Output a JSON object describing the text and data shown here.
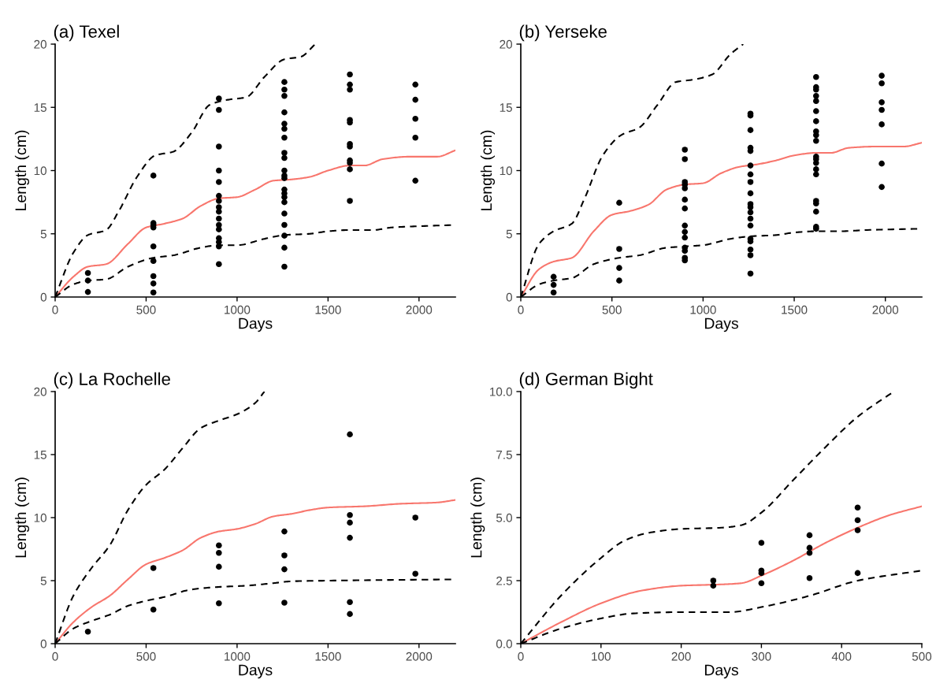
{
  "chart_data": [
    {
      "type": "scatter",
      "title": "(a) Texel",
      "xlabel": "Days",
      "ylabel": "Length (cm)",
      "xlim": [
        0,
        2200
      ],
      "xticks": [
        0,
        500,
        1000,
        1500,
        2000
      ],
      "ylim": [
        0,
        20
      ],
      "yticks": [
        0,
        5,
        10,
        15,
        20
      ],
      "grid": false,
      "legend": false,
      "series": [
        {
          "marker": "circle",
          "color": "#000000",
          "x": [
            180,
            180,
            180,
            540,
            540,
            540,
            540,
            540,
            540,
            540,
            540,
            540,
            900,
            900,
            900,
            900,
            900,
            900,
            900,
            900,
            900,
            900,
            900,
            900,
            900,
            900,
            900,
            900,
            1260,
            1260,
            1260,
            1260,
            1260,
            1260,
            1260,
            1260,
            1260,
            1260,
            1260,
            1260,
            1260,
            1260,
            1260,
            1260,
            1260,
            1260,
            1260,
            1260,
            1260,
            1620,
            1620,
            1620,
            1620,
            1620,
            1620,
            1620,
            1620,
            1620,
            1620,
            1620,
            1980,
            1980,
            1980,
            1980,
            1980
          ],
          "values": [
            1.9,
            1.3,
            0.4,
            9.6,
            5.85,
            5.7,
            5.5,
            4.0,
            2.85,
            1.65,
            1.07,
            0.36,
            15.7,
            14.8,
            11.9,
            10.0,
            9.1,
            8.0,
            7.6,
            7.1,
            6.75,
            6.2,
            5.7,
            5.35,
            4.65,
            4.35,
            4.0,
            2.6,
            17.0,
            16.4,
            15.9,
            14.6,
            13.7,
            13.3,
            12.6,
            11.4,
            11.0,
            10.0,
            9.6,
            9.4,
            8.5,
            8.2,
            7.9,
            7.5,
            6.6,
            5.7,
            4.85,
            3.9,
            2.4,
            17.6,
            16.8,
            16.4,
            14.0,
            13.8,
            12.1,
            11.9,
            10.8,
            10.6,
            10.1,
            7.6,
            16.8,
            15.6,
            14.1,
            12.6,
            9.2
          ]
        },
        {
          "type": "line",
          "color": "#f8766d",
          "line_style": "solid",
          "x": [
            0,
            100,
            180,
            280,
            400,
            500,
            600,
            700,
            800,
            900,
            1000,
            1100,
            1200,
            1300,
            1400,
            1500,
            1620,
            1700,
            1800,
            1950,
            2100,
            2200
          ],
          "values": [
            0,
            1.6,
            2.4,
            2.6,
            4.2,
            5.5,
            5.8,
            6.2,
            7.2,
            7.8,
            7.9,
            8.5,
            9.2,
            9.3,
            9.5,
            10.0,
            10.4,
            10.4,
            10.9,
            11.1,
            11.1,
            11.6
          ]
        },
        {
          "type": "line",
          "color": "#000000",
          "line_style": "dashed",
          "x": [
            0,
            100,
            180,
            280,
            350,
            450,
            550,
            650,
            750,
            850,
            950,
            1050,
            1150,
            1260,
            1350,
            1430
          ],
          "values": [
            0,
            3.5,
            4.9,
            5.3,
            6.8,
            9.5,
            11.2,
            11.5,
            13.0,
            15.2,
            15.6,
            15.8,
            17.4,
            18.8,
            19.0,
            20.0
          ]
        },
        {
          "type": "line",
          "color": "#000000",
          "line_style": "dashed",
          "x": [
            0,
            100,
            180,
            280,
            400,
            540,
            650,
            800,
            900,
            1000,
            1150,
            1260,
            1400,
            1500,
            1620,
            1750,
            1850,
            2000,
            2200
          ],
          "values": [
            0,
            1.0,
            1.3,
            1.4,
            2.4,
            3.1,
            3.3,
            3.9,
            4.1,
            4.1,
            4.6,
            4.9,
            5.0,
            5.2,
            5.3,
            5.3,
            5.5,
            5.6,
            5.7
          ]
        }
      ]
    },
    {
      "type": "scatter",
      "title": "(b) Yerseke",
      "xlabel": "Days",
      "ylabel": "Length (cm)",
      "xlim": [
        0,
        2200
      ],
      "xticks": [
        0,
        500,
        1000,
        1500,
        2000
      ],
      "ylim": [
        0,
        20
      ],
      "yticks": [
        0,
        5,
        10,
        15,
        20
      ],
      "grid": false,
      "legend": false,
      "series": [
        {
          "marker": "circle",
          "color": "#000000",
          "x": [
            180,
            180,
            180,
            540,
            540,
            540,
            540,
            900,
            900,
            900,
            900,
            900,
            900,
            900,
            900,
            900,
            900,
            900,
            900,
            900,
            900,
            1260,
            1260,
            1260,
            1260,
            1260,
            1260,
            1260,
            1260,
            1260,
            1260,
            1260,
            1260,
            1260,
            1260,
            1260,
            1260,
            1260,
            1260,
            1260,
            1620,
            1620,
            1620,
            1620,
            1620,
            1620,
            1620,
            1620,
            1620,
            1620,
            1620,
            1620,
            1620,
            1620,
            1620,
            1620,
            1620,
            1620,
            1620,
            1620,
            1980,
            1980,
            1980,
            1980,
            1980,
            1980,
            1980
          ],
          "values": [
            1.6,
            0.96,
            0.36,
            7.45,
            3.8,
            2.3,
            1.3,
            11.65,
            10.9,
            9.1,
            8.9,
            8.6,
            7.7,
            7.0,
            5.65,
            5.15,
            4.7,
            3.9,
            3.65,
            3.1,
            2.9,
            14.5,
            14.35,
            13.2,
            11.8,
            11.55,
            10.4,
            9.7,
            9.1,
            8.2,
            7.35,
            7.1,
            6.7,
            6.2,
            5.65,
            4.6,
            4.4,
            3.75,
            3.3,
            1.85,
            17.4,
            16.6,
            16.4,
            15.9,
            15.5,
            14.7,
            13.9,
            13.1,
            12.8,
            12.35,
            11.1,
            10.9,
            10.6,
            10.1,
            9.7,
            7.6,
            7.4,
            6.75,
            5.55,
            5.4,
            17.5,
            16.9,
            15.4,
            14.8,
            13.65,
            10.55,
            8.7
          ]
        },
        {
          "type": "line",
          "color": "#f8766d",
          "line_style": "solid",
          "x": [
            0,
            100,
            180,
            280,
            400,
            500,
            600,
            700,
            800,
            900,
            1000,
            1100,
            1200,
            1300,
            1400,
            1500,
            1620,
            1700,
            1800,
            1950,
            2100,
            2200
          ],
          "values": [
            0,
            2.2,
            2.8,
            3.1,
            5.2,
            6.5,
            6.8,
            7.3,
            8.5,
            8.9,
            9.0,
            9.8,
            10.3,
            10.5,
            10.8,
            11.2,
            11.4,
            11.4,
            11.8,
            11.9,
            11.9,
            12.2
          ]
        },
        {
          "type": "line",
          "color": "#000000",
          "line_style": "dashed",
          "x": [
            0,
            100,
            180,
            280,
            350,
            450,
            550,
            650,
            750,
            850,
            950,
            1050,
            1150,
            1220
          ],
          "values": [
            0,
            4.2,
            5.2,
            5.8,
            7.8,
            11.2,
            12.8,
            13.4,
            15.2,
            17.0,
            17.2,
            17.6,
            19.2,
            20.0
          ]
        },
        {
          "type": "line",
          "color": "#000000",
          "line_style": "dashed",
          "x": [
            0,
            100,
            180,
            280,
            400,
            540,
            650,
            800,
            900,
            1000,
            1150,
            1260,
            1400,
            1500,
            1620,
            1750,
            1900,
            2200
          ],
          "values": [
            0,
            1.0,
            1.3,
            1.5,
            2.6,
            3.1,
            3.3,
            3.9,
            4.0,
            4.1,
            4.6,
            4.8,
            4.9,
            5.1,
            5.2,
            5.2,
            5.3,
            5.4
          ]
        }
      ]
    },
    {
      "type": "scatter",
      "title": "(c) La Rochelle",
      "xlabel": "Days",
      "ylabel": "Length (cm)",
      "xlim": [
        0,
        2200
      ],
      "xticks": [
        0,
        500,
        1000,
        1500,
        2000
      ],
      "ylim": [
        0,
        20
      ],
      "yticks": [
        0,
        5,
        10,
        15,
        20
      ],
      "grid": false,
      "legend": false,
      "series": [
        {
          "marker": "circle",
          "color": "#000000",
          "x": [
            180,
            540,
            540,
            900,
            900,
            900,
            900,
            1260,
            1260,
            1260,
            1260,
            1620,
            1620,
            1620,
            1620,
            1620,
            1620,
            1980,
            1980
          ],
          "values": [
            0.95,
            6.0,
            2.7,
            7.8,
            7.2,
            6.1,
            3.2,
            8.9,
            7.0,
            5.9,
            3.25,
            16.6,
            10.2,
            9.6,
            8.4,
            3.3,
            2.35,
            10.0,
            5.55
          ]
        },
        {
          "type": "line",
          "color": "#f8766d",
          "line_style": "solid",
          "x": [
            0,
            100,
            200,
            300,
            400,
            500,
            600,
            700,
            800,
            900,
            1000,
            1100,
            1200,
            1300,
            1400,
            1500,
            1700,
            1900,
            2100,
            2200
          ],
          "values": [
            0,
            1.7,
            2.9,
            3.8,
            5.1,
            6.3,
            6.8,
            7.4,
            8.4,
            8.9,
            9.1,
            9.5,
            10.1,
            10.3,
            10.6,
            10.8,
            10.9,
            11.1,
            11.2,
            11.4
          ]
        },
        {
          "type": "line",
          "color": "#000000",
          "line_style": "dashed",
          "x": [
            0,
            100,
            200,
            300,
            400,
            500,
            600,
            700,
            800,
            900,
            1000,
            1100,
            1150
          ],
          "values": [
            0,
            3.8,
            6.0,
            7.8,
            10.6,
            12.6,
            13.8,
            15.5,
            17.1,
            17.7,
            18.2,
            19.1,
            20.0
          ]
        },
        {
          "type": "line",
          "color": "#000000",
          "line_style": "dashed",
          "x": [
            0,
            100,
            200,
            300,
            400,
            500,
            600,
            750,
            900,
            1050,
            1200,
            1300,
            1500,
            1800,
            2200
          ],
          "values": [
            0,
            1.2,
            1.8,
            2.3,
            3.0,
            3.4,
            3.7,
            4.3,
            4.5,
            4.6,
            4.8,
            4.95,
            5.0,
            5.05,
            5.1
          ]
        }
      ]
    },
    {
      "type": "scatter",
      "title": "(d) German Bight",
      "xlabel": "Days",
      "ylabel": "Length (cm)",
      "xlim": [
        0,
        500
      ],
      "xticks": [
        0,
        100,
        200,
        300,
        400,
        500
      ],
      "ylim": [
        0,
        10
      ],
      "yticks": [
        {
          "value": 0,
          "label": "0.0"
        },
        {
          "value": 2.5,
          "label": "2.5"
        },
        {
          "value": 5,
          "label": "5.0"
        },
        {
          "value": 7.5,
          "label": "7.5"
        },
        {
          "value": 10,
          "label": "10.0"
        }
      ],
      "grid": false,
      "legend": false,
      "series": [
        {
          "marker": "circle",
          "color": "#000000",
          "x": [
            240,
            240,
            300,
            300,
            300,
            300,
            360,
            360,
            360,
            360,
            420,
            420,
            420,
            420
          ],
          "values": [
            2.5,
            2.3,
            4.0,
            2.9,
            2.8,
            2.4,
            4.3,
            3.8,
            3.6,
            2.6,
            5.4,
            4.9,
            4.5,
            2.8
          ]
        },
        {
          "type": "line",
          "color": "#f8766d",
          "line_style": "solid",
          "x": [
            0,
            50,
            100,
            150,
            200,
            250,
            275,
            300,
            340,
            380,
            420,
            460,
            500
          ],
          "values": [
            0,
            0.85,
            1.6,
            2.1,
            2.3,
            2.35,
            2.4,
            2.7,
            3.3,
            4.0,
            4.6,
            5.1,
            5.45
          ]
        },
        {
          "type": "line",
          "color": "#000000",
          "line_style": "dashed",
          "x": [
            0,
            50,
            100,
            130,
            160,
            200,
            250,
            275,
            300,
            340,
            380,
            420,
            465
          ],
          "values": [
            0,
            1.9,
            3.4,
            4.1,
            4.4,
            4.55,
            4.6,
            4.7,
            5.2,
            6.5,
            7.8,
            9.0,
            10.0
          ]
        },
        {
          "type": "line",
          "color": "#000000",
          "line_style": "dashed",
          "x": [
            0,
            50,
            100,
            140,
            200,
            260,
            300,
            360,
            420,
            500
          ],
          "values": [
            0,
            0.6,
            1.0,
            1.2,
            1.25,
            1.25,
            1.45,
            1.9,
            2.5,
            2.9
          ]
        }
      ]
    }
  ]
}
